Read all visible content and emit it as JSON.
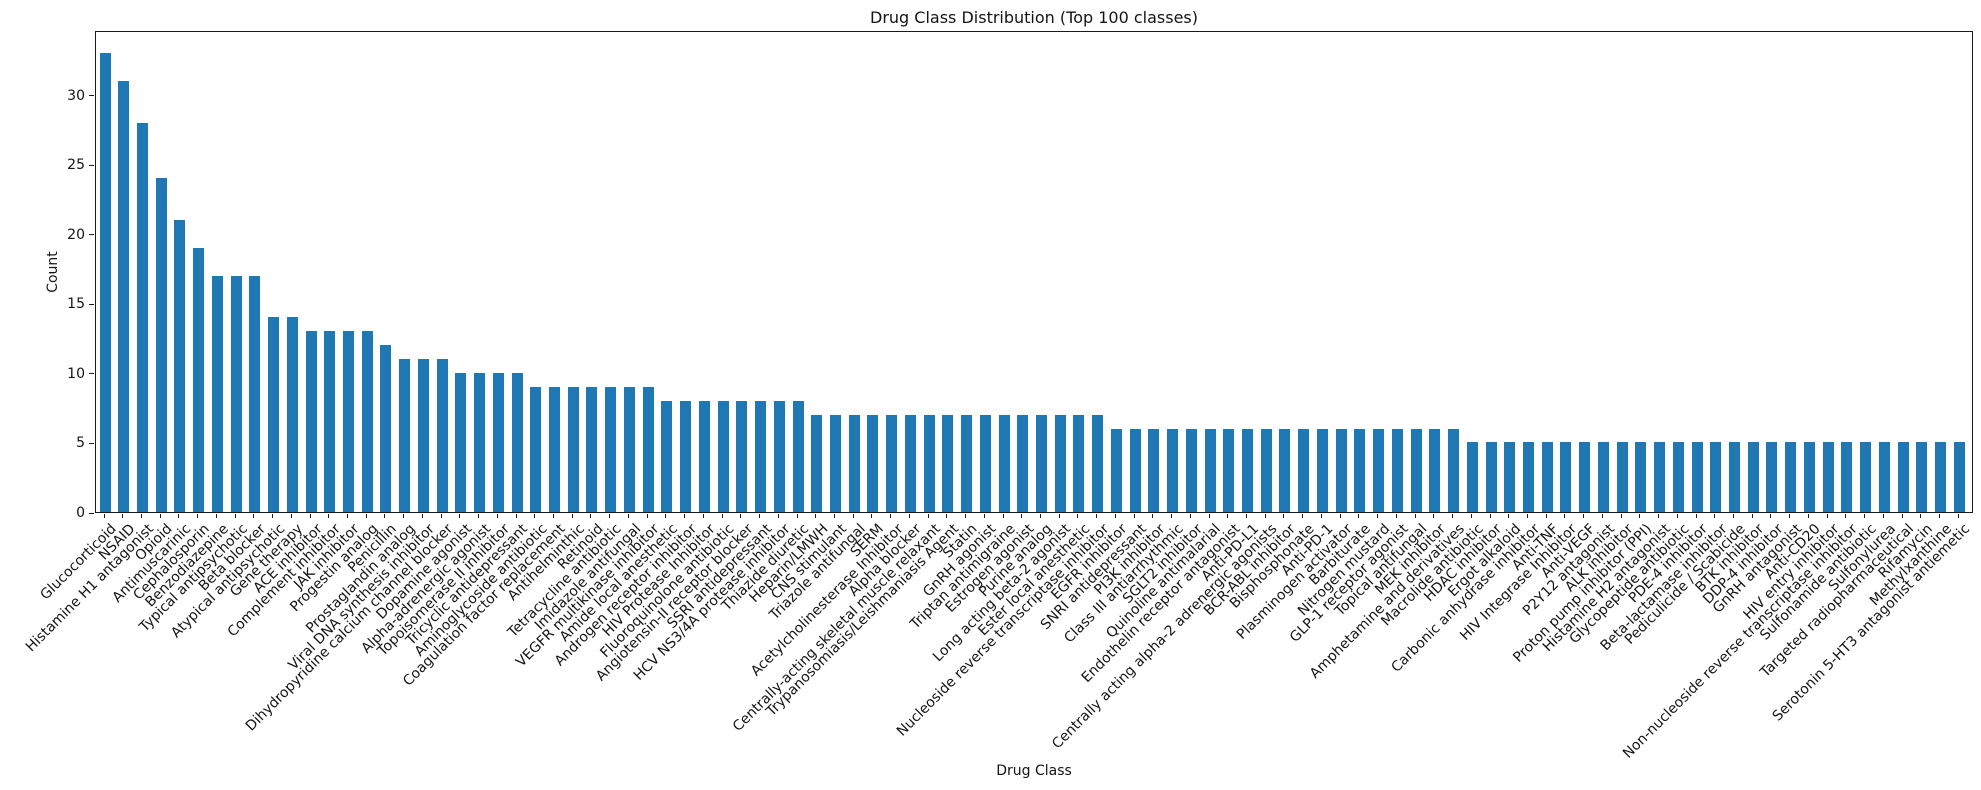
{
  "chart_data": {
    "type": "bar",
    "title": "Drug Class Distribution (Top 100 classes)",
    "xlabel": "Drug Class",
    "ylabel": "Count",
    "ylim": [
      0,
      34.65
    ],
    "yticks": [
      0,
      5,
      10,
      15,
      20,
      25,
      30
    ],
    "grid": false,
    "legend": "none",
    "bar_color": "#1f77b4",
    "categories": [
      "Glucocorticoid",
      "NSAID",
      "Histamine H1 antagonist",
      "Opioid",
      "Antimuscarinic",
      "Cephalosporin",
      "Benzodiazepine",
      "Typical antipsychotic",
      "Beta blocker",
      "Atypical antipsychotic",
      "Gene therapy",
      "ACE inhibitor",
      "Complement inhibitor",
      "JAK inhibitor",
      "Progestin analog",
      "Penicillin",
      "Prostaglandin analog",
      "Viral DNA synthesis inhibitor",
      "Dihydropyridine calcium channel blocker",
      "Dopamine agonist",
      "Alpha-adrenergic agonist",
      "Topoisomerase II inhibitor",
      "Tricyclic antidepressant",
      "Aminoglycoside antibiotic",
      "Coagulation factor replacement",
      "Antihelminthic",
      "Retinoid",
      "Tetracycline antibiotic",
      "Imidazole antifungal",
      "VEGFR multikinase inhibitor",
      "Amide local anesthetic",
      "Androgen receptor inhibitor",
      "HIV Protease Inhibitor",
      "Fluoroquinolone antibiotic",
      "Angiotensin-II receptor blocker",
      "SSRI antidepressant",
      "HCV NS3/4A protease inhibitor",
      "Thiazide diuretic",
      "Heparin/LMWH",
      "CNS stimulant",
      "Triazole antifungal",
      "SERM",
      "Acetylcholinesterase Inhibitor",
      "Alpha blocker",
      "Centrally-acting skeletal muscle relaxant",
      "Trypanosomiasis/Leishmaniasis Agent",
      "Statin",
      "GnRH agonist",
      "Triptan antimigraine",
      "Estrogen agonist",
      "Purine analog",
      "Long acting beta-2 agonist",
      "Ester local anesthetic",
      "Nucleoside reverse transcriptase inhibitor",
      "EGFR inhibitor",
      "SNRI antidepressant",
      "PI3K inhibitor",
      "Class III antiarrhythmic",
      "SGLT2 inhibitor",
      "Quinoline antimalarial",
      "Endothelin receptor antagonist",
      "Anti-PD-L1",
      "Centrally acting alpha-2 adrenergic agonists",
      "BCR-ABL inhibitor",
      "Bisphosphonate",
      "Anti-PD-1",
      "Plasminogen activator",
      "Barbiturate",
      "Nitrogen mustard",
      "GLP-1 receptor agonist",
      "Topical antifungal",
      "MEK inhibitor",
      "Amphetamine and derivatives",
      "Macrolide antibiotic",
      "HDAC inhibitor",
      "Ergot alkaloid",
      "Carbonic anhydrase inhibitor",
      "Anti-TNF",
      "HIV Integrase Inhibitor",
      "Anti-VEGF",
      "P2Y12 antagonist",
      "ALK inhibitor",
      "Proton pump inhibitor (PPI)",
      "Histamine H2 antagonist",
      "Glycopeptide antibiotic",
      "PDE-4 inhibitor",
      "Beta-lactamase inhibitor",
      "Pediculicide / Scabicide",
      "BTK inhibitor",
      "DDP-4 inhibitor",
      "GnRH antagonist",
      "Anti-CD20",
      "HIV entry inhibitor",
      "Non-nucleoside reverse transcriptase inhibitor",
      "Sulfonamide antibiotic",
      "Sulfonylurea",
      "Targeted radiopharmaceutical",
      "Rifamycin",
      "Methylxanthine",
      "Serotonin 5-HT3 antagonist antiemetic"
    ],
    "values": [
      33,
      31,
      28,
      24,
      21,
      19,
      17,
      17,
      17,
      14,
      14,
      13,
      13,
      13,
      13,
      12,
      11,
      11,
      11,
      10,
      10,
      10,
      10,
      9,
      9,
      9,
      9,
      9,
      9,
      9,
      8,
      8,
      8,
      8,
      8,
      8,
      8,
      8,
      7,
      7,
      7,
      7,
      7,
      7,
      7,
      7,
      7,
      7,
      7,
      7,
      7,
      7,
      7,
      7,
      6,
      6,
      6,
      6,
      6,
      6,
      6,
      6,
      6,
      6,
      6,
      6,
      6,
      6,
      6,
      6,
      6,
      6,
      6,
      5,
      5,
      5,
      5,
      5,
      5,
      5,
      5,
      5,
      5,
      5,
      5,
      5,
      5,
      5,
      5,
      5,
      5,
      5,
      5,
      5,
      5,
      5,
      5,
      5,
      5,
      5
    ]
  }
}
